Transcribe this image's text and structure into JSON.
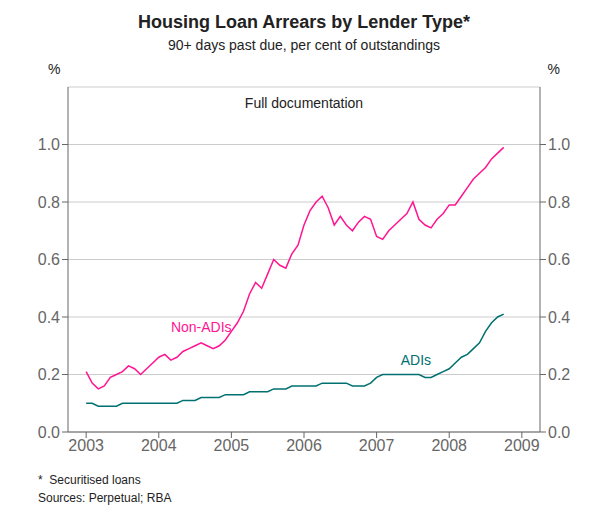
{
  "chart_data": {
    "type": "line",
    "title": "Housing Loan Arrears by Lender Type*",
    "subtitle": "90+ days past due, per cent of outstandings",
    "annotation": "Full documentation",
    "ylabel": "%",
    "y2label": "%",
    "footnotes": [
      "*  Securitised loans",
      "Sources: Perpetual; RBA"
    ],
    "xlim": [
      2002.75,
      2009.25
    ],
    "xticks": [
      2003,
      2004,
      2005,
      2006,
      2007,
      2008,
      2009
    ],
    "ylim": [
      0.0,
      1.2
    ],
    "yticks": [
      {
        "value": 0.0,
        "label": "0.0"
      },
      0.2,
      0.4,
      0.6,
      0.8,
      {
        "value": 1.0,
        "label": "1.0"
      }
    ],
    "y2lim": [
      0.0,
      1.2
    ],
    "y2ticks": [
      {
        "value": 0.0,
        "label": "0.0"
      },
      0.2,
      0.4,
      0.6,
      0.8,
      {
        "value": 1.0,
        "label": "1.0"
      }
    ],
    "grid": true,
    "x": [
      2003.0,
      2003.083,
      2003.167,
      2003.25,
      2003.333,
      2003.417,
      2003.5,
      2003.583,
      2003.667,
      2003.75,
      2003.833,
      2003.917,
      2004.0,
      2004.083,
      2004.167,
      2004.25,
      2004.333,
      2004.417,
      2004.5,
      2004.583,
      2004.667,
      2004.75,
      2004.833,
      2004.917,
      2005.0,
      2005.083,
      2005.167,
      2005.25,
      2005.333,
      2005.417,
      2005.5,
      2005.583,
      2005.667,
      2005.75,
      2005.833,
      2005.917,
      2006.0,
      2006.083,
      2006.167,
      2006.25,
      2006.333,
      2006.417,
      2006.5,
      2006.583,
      2006.667,
      2006.75,
      2006.833,
      2006.917,
      2007.0,
      2007.083,
      2007.167,
      2007.25,
      2007.333,
      2007.417,
      2007.5,
      2007.583,
      2007.667,
      2007.75,
      2007.833,
      2007.917,
      2008.0,
      2008.083,
      2008.167,
      2008.25,
      2008.333,
      2008.417,
      2008.5,
      2008.583,
      2008.667,
      2008.75
    ],
    "series": [
      {
        "name": "Non-ADIs",
        "color": "#FF1493",
        "values": [
          0.21,
          0.17,
          0.15,
          0.16,
          0.19,
          0.2,
          0.21,
          0.23,
          0.22,
          0.2,
          0.22,
          0.24,
          0.26,
          0.27,
          0.25,
          0.26,
          0.28,
          0.29,
          0.3,
          0.31,
          0.3,
          0.29,
          0.3,
          0.32,
          0.35,
          0.38,
          0.42,
          0.48,
          0.52,
          0.5,
          0.55,
          0.6,
          0.58,
          0.57,
          0.62,
          0.65,
          0.72,
          0.77,
          0.8,
          0.82,
          0.78,
          0.72,
          0.75,
          0.72,
          0.7,
          0.73,
          0.75,
          0.74,
          0.68,
          0.67,
          0.7,
          0.72,
          0.74,
          0.76,
          0.8,
          0.74,
          0.72,
          0.71,
          0.74,
          0.76,
          0.79,
          0.79,
          0.82,
          0.85,
          0.88,
          0.9,
          0.92,
          0.95,
          0.97,
          0.99
        ]
      },
      {
        "name": "ADIs",
        "color": "#007070",
        "values": [
          0.1,
          0.1,
          0.09,
          0.09,
          0.09,
          0.09,
          0.1,
          0.1,
          0.1,
          0.1,
          0.1,
          0.1,
          0.1,
          0.1,
          0.1,
          0.1,
          0.11,
          0.11,
          0.11,
          0.12,
          0.12,
          0.12,
          0.12,
          0.13,
          0.13,
          0.13,
          0.13,
          0.14,
          0.14,
          0.14,
          0.14,
          0.15,
          0.15,
          0.15,
          0.16,
          0.16,
          0.16,
          0.16,
          0.16,
          0.17,
          0.17,
          0.17,
          0.17,
          0.17,
          0.16,
          0.16,
          0.16,
          0.17,
          0.19,
          0.2,
          0.2,
          0.2,
          0.2,
          0.2,
          0.2,
          0.2,
          0.19,
          0.19,
          0.2,
          0.21,
          0.22,
          0.24,
          0.26,
          0.27,
          0.29,
          0.31,
          0.35,
          0.38,
          0.4,
          0.41
        ]
      }
    ]
  }
}
